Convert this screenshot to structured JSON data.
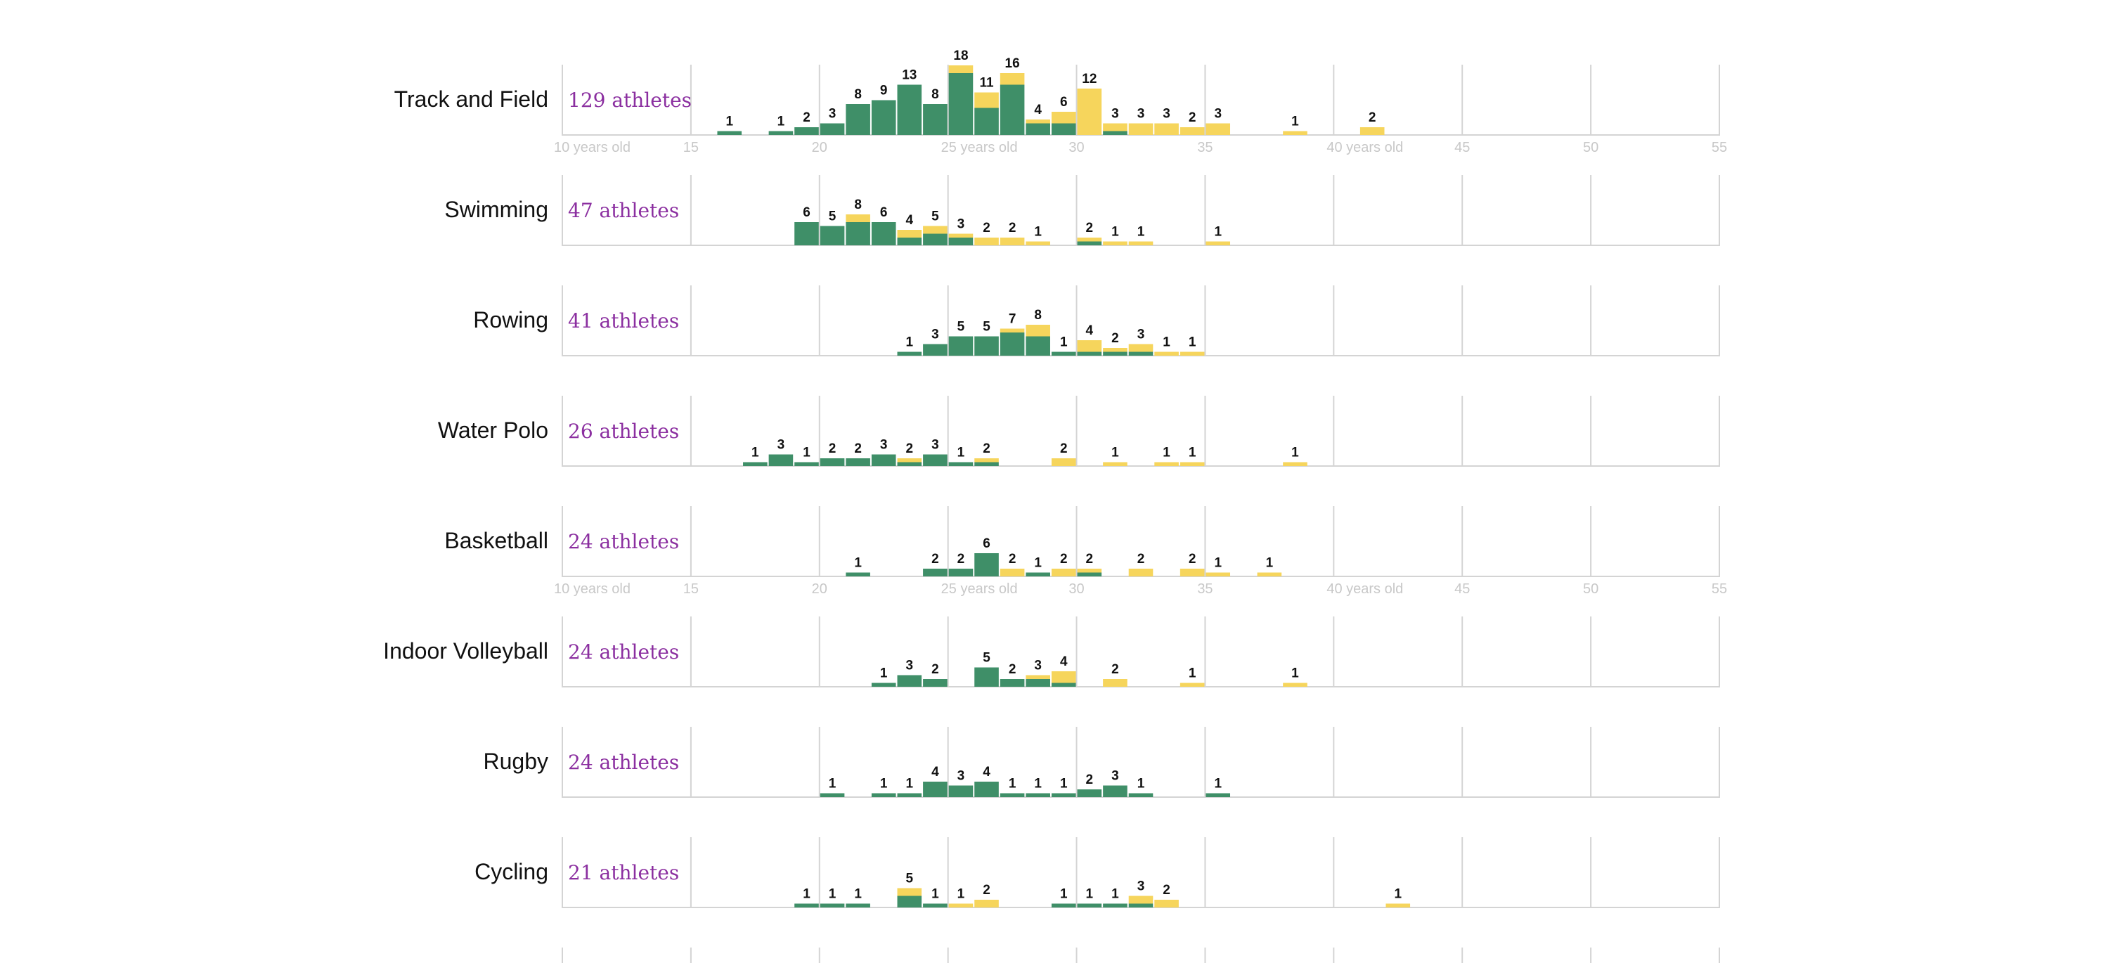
{
  "colors": {
    "green": "#3f8f68",
    "yellow": "#f6d55c",
    "count_text": "#8b2fa0",
    "grid": "#d4d4d4",
    "tick_text": "#c8c8c8"
  },
  "chart_data": {
    "type": "bar",
    "stacked": true,
    "x_range": [
      10,
      55
    ],
    "grid_ages": [
      15,
      20,
      25,
      30,
      35,
      40,
      45,
      50,
      55
    ],
    "tick_labels": [
      {
        "age": 10,
        "label": "10 years old"
      },
      {
        "age": 15,
        "label": "15"
      },
      {
        "age": 20,
        "label": "20"
      },
      {
        "age": 25,
        "label": "25 years old"
      },
      {
        "age": 30,
        "label": "30"
      },
      {
        "age": 35,
        "label": "35"
      },
      {
        "age": 40,
        "label": "40 years old"
      },
      {
        "age": 45,
        "label": "45"
      },
      {
        "age": 50,
        "label": "50"
      },
      {
        "age": 55,
        "label": "55"
      }
    ],
    "tick_rows_after": [
      "Track and Field",
      "Basketball"
    ],
    "series_colors": [
      "green",
      "yellow"
    ],
    "panels": [
      {
        "sport": "Track and Field",
        "count_label": "129 athletes",
        "bins": [
          {
            "age": 16,
            "total": 1,
            "green": 1
          },
          {
            "age": 18,
            "total": 1,
            "green": 1
          },
          {
            "age": 19,
            "total": 2,
            "green": 2
          },
          {
            "age": 20,
            "total": 3,
            "green": 3
          },
          {
            "age": 21,
            "total": 8,
            "green": 8
          },
          {
            "age": 22,
            "total": 9,
            "green": 9
          },
          {
            "age": 23,
            "total": 13,
            "green": 13
          },
          {
            "age": 24,
            "total": 8,
            "green": 8
          },
          {
            "age": 25,
            "total": 18,
            "green": 16
          },
          {
            "age": 26,
            "total": 11,
            "green": 7
          },
          {
            "age": 27,
            "total": 16,
            "green": 13
          },
          {
            "age": 28,
            "total": 4,
            "green": 3
          },
          {
            "age": 29,
            "total": 6,
            "green": 3
          },
          {
            "age": 30,
            "total": 12,
            "green": 0
          },
          {
            "age": 31,
            "total": 3,
            "green": 1
          },
          {
            "age": 32,
            "total": 3,
            "green": 0
          },
          {
            "age": 33,
            "total": 3,
            "green": 0
          },
          {
            "age": 34,
            "total": 2,
            "green": 0
          },
          {
            "age": 35,
            "total": 3,
            "green": 0
          },
          {
            "age": 38,
            "total": 1,
            "green": 0
          },
          {
            "age": 41,
            "total": 2,
            "green": 0
          }
        ]
      },
      {
        "sport": "Swimming",
        "count_label": "47 athletes",
        "bins": [
          {
            "age": 19,
            "total": 6,
            "green": 6
          },
          {
            "age": 20,
            "total": 5,
            "green": 5
          },
          {
            "age": 21,
            "total": 8,
            "green": 6
          },
          {
            "age": 22,
            "total": 6,
            "green": 6
          },
          {
            "age": 23,
            "total": 4,
            "green": 2
          },
          {
            "age": 24,
            "total": 5,
            "green": 3
          },
          {
            "age": 25,
            "total": 3,
            "green": 2
          },
          {
            "age": 26,
            "total": 2,
            "green": 0
          },
          {
            "age": 27,
            "total": 2,
            "green": 0
          },
          {
            "age": 28,
            "total": 1,
            "green": 0
          },
          {
            "age": 30,
            "total": 2,
            "green": 1
          },
          {
            "age": 31,
            "total": 1,
            "green": 0
          },
          {
            "age": 32,
            "total": 1,
            "green": 0
          },
          {
            "age": 35,
            "total": 1,
            "green": 0
          }
        ]
      },
      {
        "sport": "Rowing",
        "count_label": "41 athletes",
        "bins": [
          {
            "age": 23,
            "total": 1,
            "green": 1
          },
          {
            "age": 24,
            "total": 3,
            "green": 3
          },
          {
            "age": 25,
            "total": 5,
            "green": 5
          },
          {
            "age": 26,
            "total": 5,
            "green": 5
          },
          {
            "age": 27,
            "total": 7,
            "green": 6
          },
          {
            "age": 28,
            "total": 8,
            "green": 5
          },
          {
            "age": 29,
            "total": 1,
            "green": 1
          },
          {
            "age": 30,
            "total": 4,
            "green": 1
          },
          {
            "age": 31,
            "total": 2,
            "green": 1
          },
          {
            "age": 32,
            "total": 3,
            "green": 1
          },
          {
            "age": 33,
            "total": 1,
            "green": 0
          },
          {
            "age": 34,
            "total": 1,
            "green": 0
          }
        ]
      },
      {
        "sport": "Water Polo",
        "count_label": "26 athletes",
        "bins": [
          {
            "age": 17,
            "total": 1,
            "green": 1
          },
          {
            "age": 18,
            "total": 3,
            "green": 3
          },
          {
            "age": 19,
            "total": 1,
            "green": 1
          },
          {
            "age": 20,
            "total": 2,
            "green": 2
          },
          {
            "age": 21,
            "total": 2,
            "green": 2
          },
          {
            "age": 22,
            "total": 3,
            "green": 3
          },
          {
            "age": 23,
            "total": 2,
            "green": 1
          },
          {
            "age": 24,
            "total": 3,
            "green": 3
          },
          {
            "age": 25,
            "total": 1,
            "green": 1
          },
          {
            "age": 26,
            "total": 2,
            "green": 1
          },
          {
            "age": 29,
            "total": 2,
            "green": 0
          },
          {
            "age": 31,
            "total": 1,
            "green": 0
          },
          {
            "age": 33,
            "total": 1,
            "green": 0
          },
          {
            "age": 34,
            "total": 1,
            "green": 0
          },
          {
            "age": 38,
            "total": 1,
            "green": 0
          }
        ]
      },
      {
        "sport": "Basketball",
        "count_label": "24 athletes",
        "bins": [
          {
            "age": 21,
            "total": 1,
            "green": 1
          },
          {
            "age": 24,
            "total": 2,
            "green": 2
          },
          {
            "age": 25,
            "total": 2,
            "green": 2
          },
          {
            "age": 26,
            "total": 6,
            "green": 6
          },
          {
            "age": 27,
            "total": 2,
            "green": 0
          },
          {
            "age": 28,
            "total": 1,
            "green": 1
          },
          {
            "age": 29,
            "total": 2,
            "green": 0
          },
          {
            "age": 30,
            "total": 2,
            "green": 1
          },
          {
            "age": 32,
            "total": 2,
            "green": 0
          },
          {
            "age": 34,
            "total": 2,
            "green": 0
          },
          {
            "age": 35,
            "total": 1,
            "green": 0
          },
          {
            "age": 37,
            "total": 1,
            "green": 0
          }
        ]
      },
      {
        "sport": "Indoor Volleyball",
        "count_label": "24 athletes",
        "bins": [
          {
            "age": 22,
            "total": 1,
            "green": 1
          },
          {
            "age": 23,
            "total": 3,
            "green": 3
          },
          {
            "age": 24,
            "total": 2,
            "green": 2
          },
          {
            "age": 26,
            "total": 5,
            "green": 5
          },
          {
            "age": 27,
            "total": 2,
            "green": 2
          },
          {
            "age": 28,
            "total": 3,
            "green": 2
          },
          {
            "age": 29,
            "total": 4,
            "green": 1
          },
          {
            "age": 31,
            "total": 2,
            "green": 0
          },
          {
            "age": 34,
            "total": 1,
            "green": 0
          },
          {
            "age": 38,
            "total": 1,
            "green": 0
          }
        ]
      },
      {
        "sport": "Rugby",
        "count_label": "24 athletes",
        "bins": [
          {
            "age": 20,
            "total": 1,
            "green": 1
          },
          {
            "age": 22,
            "total": 1,
            "green": 1
          },
          {
            "age": 23,
            "total": 1,
            "green": 1
          },
          {
            "age": 24,
            "total": 4,
            "green": 4
          },
          {
            "age": 25,
            "total": 3,
            "green": 3
          },
          {
            "age": 26,
            "total": 4,
            "green": 4
          },
          {
            "age": 27,
            "total": 1,
            "green": 1
          },
          {
            "age": 28,
            "total": 1,
            "green": 1
          },
          {
            "age": 29,
            "total": 1,
            "green": 1
          },
          {
            "age": 30,
            "total": 2,
            "green": 2
          },
          {
            "age": 31,
            "total": 3,
            "green": 3
          },
          {
            "age": 32,
            "total": 1,
            "green": 1
          },
          {
            "age": 35,
            "total": 1,
            "green": 1
          }
        ]
      },
      {
        "sport": "Cycling",
        "count_label": "21 athletes",
        "bins": [
          {
            "age": 19,
            "total": 1,
            "green": 1
          },
          {
            "age": 20,
            "total": 1,
            "green": 1
          },
          {
            "age": 21,
            "total": 1,
            "green": 1
          },
          {
            "age": 23,
            "total": 5,
            "green": 3
          },
          {
            "age": 24,
            "total": 1,
            "green": 1
          },
          {
            "age": 25,
            "total": 1,
            "green": 0
          },
          {
            "age": 26,
            "total": 2,
            "green": 0
          },
          {
            "age": 29,
            "total": 1,
            "green": 1
          },
          {
            "age": 30,
            "total": 1,
            "green": 1
          },
          {
            "age": 31,
            "total": 1,
            "green": 1
          },
          {
            "age": 32,
            "total": 3,
            "green": 1
          },
          {
            "age": 33,
            "total": 2,
            "green": 0
          },
          {
            "age": 42,
            "total": 1,
            "green": 0
          }
        ]
      }
    ]
  }
}
